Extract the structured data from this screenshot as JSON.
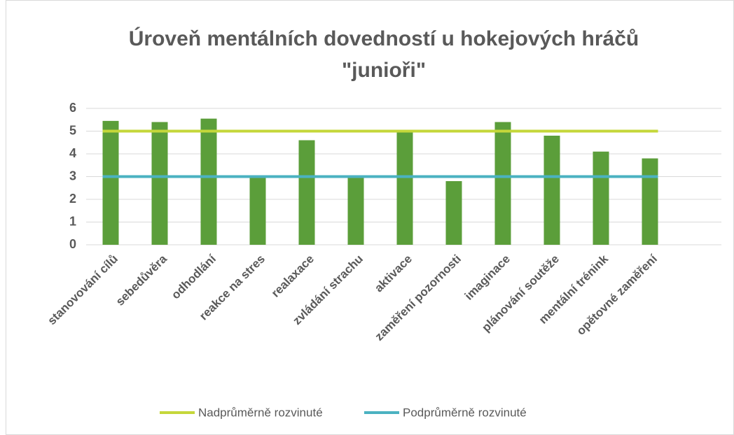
{
  "chart_data": {
    "type": "bar",
    "title": [
      "Úroveň mentálních dovedností u hokejových hráčů",
      "\"junioři\""
    ],
    "categories": [
      "stanovování cílů",
      "sebedůvěra",
      "odhodlání",
      "reakce na stres",
      "realaxace",
      "zvládání strachu",
      "aktivace",
      "zaměření pozornosti",
      "imaginace",
      "plánování soutěže",
      "mentální trénink",
      "opětovné zaměření"
    ],
    "values": [
      5.45,
      5.4,
      5.55,
      3.0,
      4.6,
      3.0,
      5.0,
      2.8,
      5.4,
      4.8,
      4.1,
      3.8
    ],
    "color": "#5b9e3a",
    "series": [
      {
        "name": "Nadprůměrně rozvinuté",
        "color": "#c5d73a",
        "values": [
          5,
          5,
          5,
          5,
          5,
          5,
          5,
          5,
          5,
          5,
          5,
          5
        ]
      },
      {
        "name": "Podprůměrně rozvinuté",
        "color": "#4bb2c1",
        "values": [
          3,
          3,
          3,
          3,
          3,
          3,
          3,
          3,
          3,
          3,
          3,
          3
        ]
      }
    ],
    "ylim": [
      0,
      6
    ],
    "yticks": [
      0,
      1,
      2,
      3,
      4,
      5,
      6
    ],
    "grid": true,
    "legend": "bottom"
  }
}
